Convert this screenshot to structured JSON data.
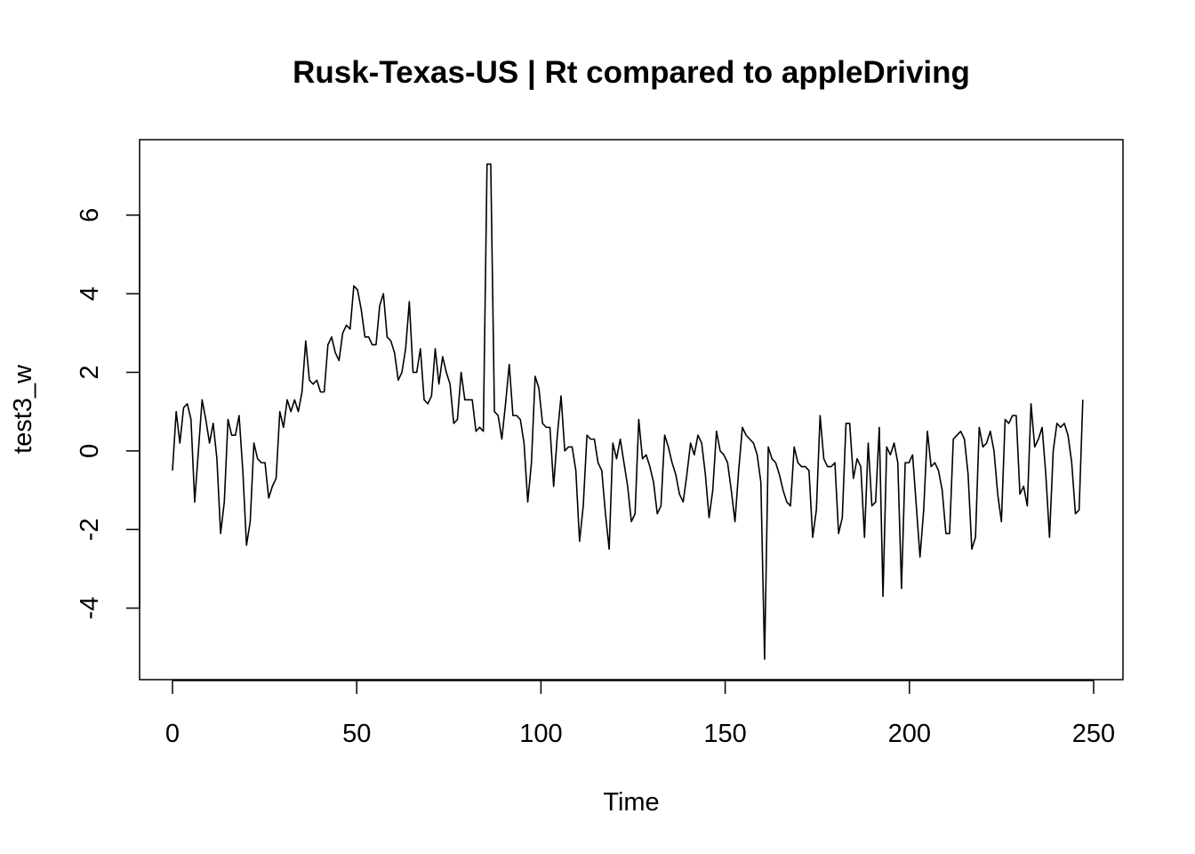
{
  "chart_data": {
    "type": "line",
    "title": "Rusk-Texas-US | Rt compared to appleDriving",
    "xlabel": "Time",
    "ylabel": "test3_w",
    "xlim": [
      1,
      248
    ],
    "ylim": [
      -5.3,
      7.4
    ],
    "x_ticks": [
      0,
      50,
      100,
      150,
      200,
      250
    ],
    "y_ticks": [
      -4,
      -2,
      0,
      2,
      4,
      6
    ],
    "x_tick_labels": [
      "0",
      "50",
      "100",
      "150",
      "200",
      "250"
    ],
    "y_tick_labels": [
      "-4",
      "-2",
      "0",
      "2",
      "4",
      "6"
    ],
    "grid": false,
    "line_color": "#000000",
    "series": [
      {
        "x_start": 1,
        "values": [
          -0.5,
          1.0,
          0.2,
          1.1,
          1.2,
          0.8,
          -1.3,
          0.0,
          1.3,
          0.8,
          0.2,
          0.7,
          -0.2,
          -2.1,
          -1.3,
          0.8,
          0.4,
          0.4,
          0.9,
          -0.5,
          -2.4,
          -1.8,
          0.2,
          -0.2,
          -0.3,
          -0.3,
          -1.2,
          -0.9,
          -0.7,
          1.0,
          0.6,
          1.3,
          1.0,
          1.3,
          1.0,
          1.5,
          2.8,
          1.8,
          1.7,
          1.8,
          1.5,
          1.5,
          2.7,
          2.9,
          2.5,
          2.3,
          3.0,
          3.2,
          3.1,
          4.2,
          4.1,
          3.6,
          2.9,
          2.9,
          2.7,
          2.7,
          3.7,
          4.0,
          2.9,
          2.8,
          2.5,
          1.8,
          2.0,
          2.6,
          3.8,
          2.0,
          2.0,
          2.6,
          1.3,
          1.2,
          1.4,
          2.6,
          1.7,
          2.4,
          2.0,
          1.7,
          0.7,
          0.8,
          2.0,
          1.3,
          1.3,
          1.3,
          0.5,
          0.6,
          0.5,
          7.3,
          7.3,
          1.0,
          0.9,
          0.3,
          1.2,
          2.2,
          0.9,
          0.9,
          0.8,
          0.2,
          -1.3,
          -0.3,
          1.9,
          1.6,
          0.7,
          0.6,
          0.6,
          -0.9,
          0.4,
          1.4,
          0.0,
          0.1,
          0.1,
          -0.5,
          -2.3,
          -1.4,
          0.4,
          0.3,
          0.3,
          -0.3,
          -0.5,
          -1.6,
          -2.5,
          0.2,
          -0.2,
          0.3,
          -0.3,
          -0.9,
          -1.8,
          -1.6,
          0.8,
          -0.2,
          -0.1,
          -0.4,
          -0.8,
          -1.6,
          -1.4,
          0.4,
          0.1,
          -0.3,
          -0.6,
          -1.1,
          -1.3,
          -0.6,
          0.2,
          -0.1,
          0.4,
          0.2,
          -0.6,
          -1.7,
          -1.0,
          0.5,
          0.0,
          -0.1,
          -0.3,
          -1.0,
          -1.8,
          -0.5,
          0.6,
          0.4,
          0.3,
          0.2,
          -0.1,
          -0.8,
          -5.3,
          0.1,
          -0.2,
          -0.3,
          -0.6,
          -1.0,
          -1.3,
          -1.4,
          0.1,
          -0.3,
          -0.4,
          -0.4,
          -0.5,
          -2.2,
          -1.5,
          0.9,
          -0.2,
          -0.4,
          -0.4,
          -0.3,
          -2.1,
          -1.7,
          0.7,
          0.7,
          -0.7,
          -0.2,
          -0.4,
          -2.2,
          0.2,
          -1.4,
          -1.3,
          0.6,
          -3.7,
          0.1,
          -0.1,
          0.2,
          -0.3,
          -3.5,
          -0.3,
          -0.3,
          -0.1,
          -1.4,
          -2.7,
          -1.5,
          0.5,
          -0.4,
          -0.3,
          -0.5,
          -1.0,
          -2.1,
          -2.1,
          0.3,
          0.4,
          0.5,
          0.3,
          -0.6,
          -2.5,
          -2.2,
          0.6,
          0.1,
          0.2,
          0.5,
          0.0,
          -1.1,
          -1.8,
          0.8,
          0.7,
          0.9,
          0.9,
          -1.1,
          -0.9,
          -1.4,
          1.2,
          0.1,
          0.3,
          0.6,
          -0.6,
          -2.2,
          0.0,
          0.7,
          0.6,
          0.7,
          0.4,
          -0.3,
          -1.6,
          -1.5,
          1.3
        ]
      }
    ]
  }
}
